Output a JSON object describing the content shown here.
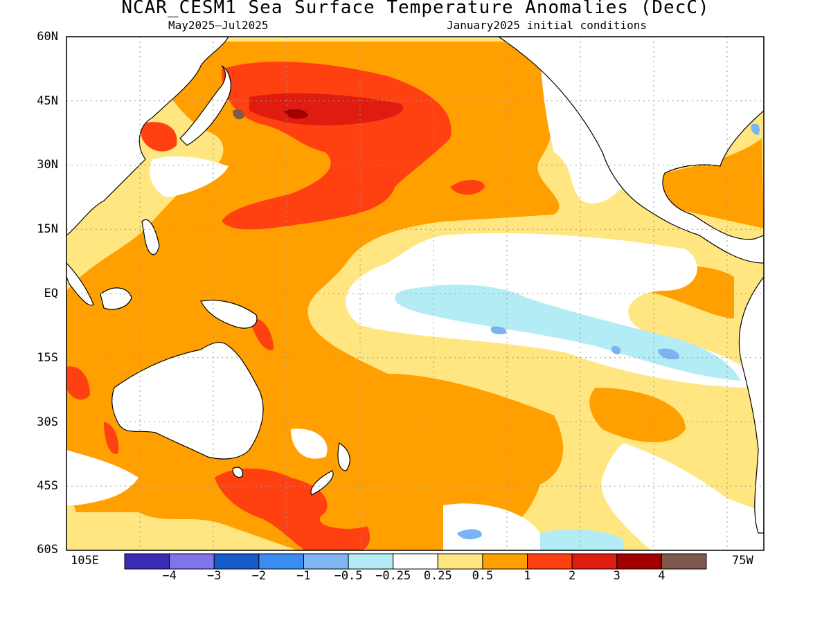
{
  "header": {
    "title": "NCAR_CESM1 Sea Surface Temperature Anomalies (DecC)",
    "period": "May2025–Jul2025",
    "init": "January2025 initial conditions"
  },
  "map": {
    "lat_labels": [
      "60N",
      "45N",
      "30N",
      "15N",
      "EQ",
      "15S",
      "30S",
      "45S",
      "60S"
    ],
    "lon_left": "105E",
    "lon_right": "75W",
    "colors": {
      "land": "#ffffff",
      "coast": "#000000",
      "neutral": "#ffffff",
      "warm_025": "#ffe680",
      "warm_05": "#ffa000",
      "warm_1": "#ff4010",
      "warm_2": "#e01c10",
      "warm_3": "#a00000",
      "warm_4": "#7f5a4c",
      "cool_025": "#b4ecf6",
      "cool_05": "#7ab4f4",
      "cool_1": "#4291f1"
    }
  },
  "colorbar": {
    "colors": [
      "#3b2cb3",
      "#8274ea",
      "#165ccd",
      "#3b8cf0",
      "#80b6f4",
      "#b4ecf6",
      "#ffffff",
      "#ffe680",
      "#ffa000",
      "#ff4010",
      "#e01c10",
      "#a00000",
      "#7f5a4c"
    ],
    "labels": [
      "−4",
      "−3",
      "−2",
      "−1",
      "−0.5",
      "−0.25",
      "0.25",
      "0.5",
      "1",
      "2",
      "3",
      "4"
    ]
  }
}
